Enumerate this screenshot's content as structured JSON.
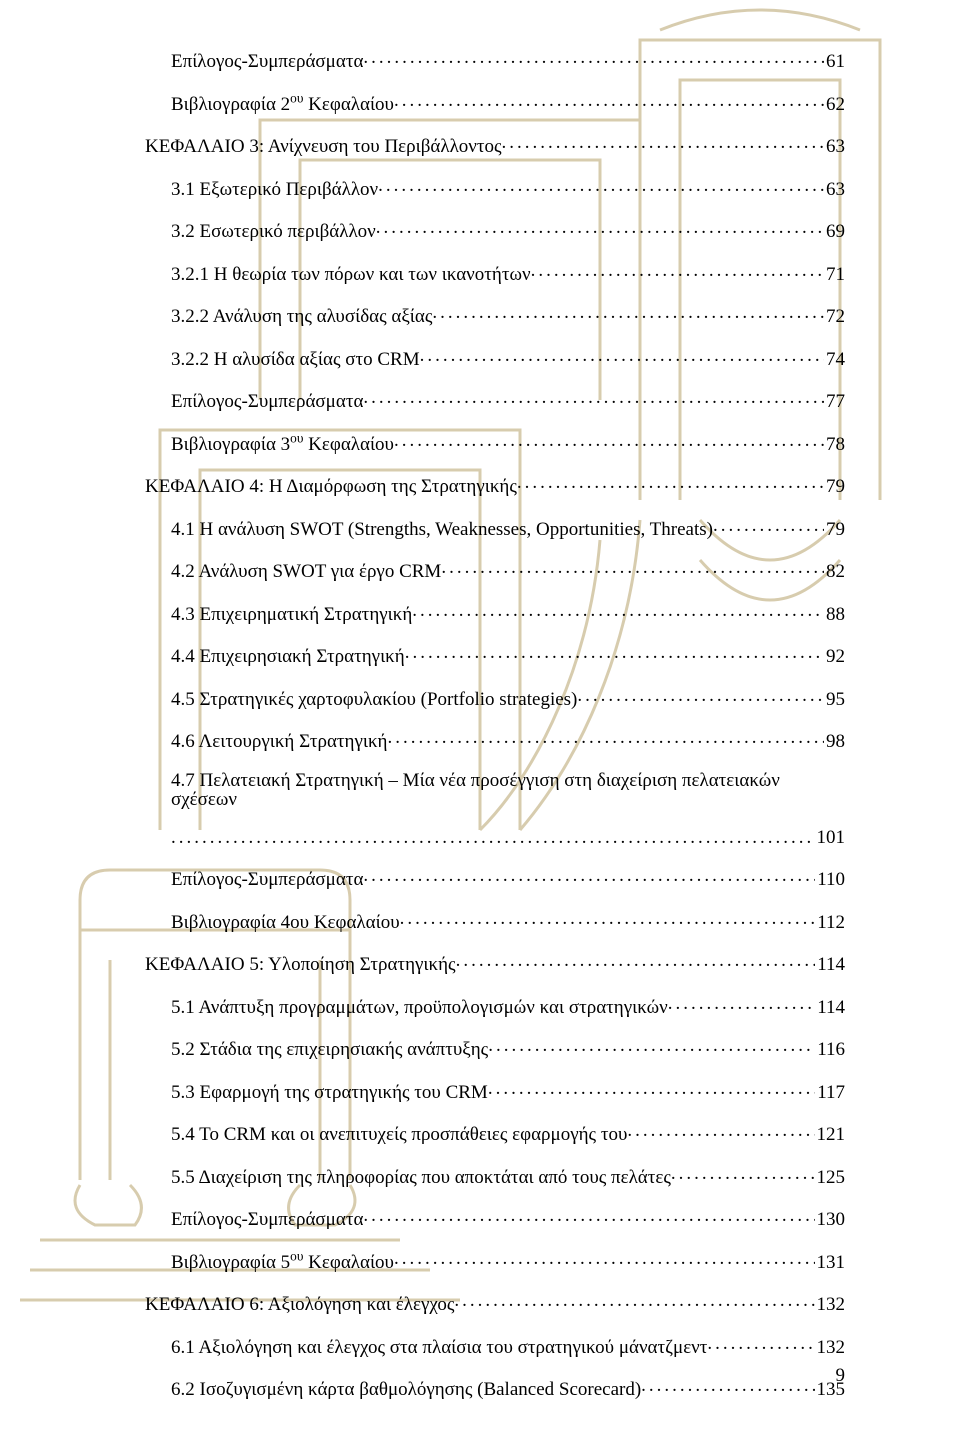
{
  "page_number": "9",
  "entries": [
    {
      "indent": "section",
      "text": "Επίλογος-Συμπεράσματα",
      "page": "61"
    },
    {
      "indent": "section",
      "html": "Βιβλιογραφία 2<sup>ου</sup> Κεφαλαίου",
      "page": "62"
    },
    {
      "indent": "chapter",
      "text": "ΚΕΦΑΛΑΙΟ 3: Ανίχνευση του Περιβάλλοντος",
      "page": "63"
    },
    {
      "indent": "section",
      "text": "3.1 Εξωτερικό Περιβάλλον",
      "page": "63"
    },
    {
      "indent": "section",
      "text": "3.2 Εσωτερικό περιβάλλον",
      "page": "69"
    },
    {
      "indent": "section",
      "text": "3.2.1 Η θεωρία των πόρων και των ικανοτήτων",
      "page": "71"
    },
    {
      "indent": "section",
      "text": "3.2.2 Ανάλυση της αλυσίδας αξίας",
      "page": "72"
    },
    {
      "indent": "section",
      "text": "3.2.2 Η αλυσίδα αξίας στο CRM",
      "page": "74"
    },
    {
      "indent": "section",
      "text": "Επίλογος-Συμπεράσματα",
      "page": "77"
    },
    {
      "indent": "section",
      "html": "Βιβλιογραφία 3<sup>ου</sup> Κεφαλαίου",
      "page": "78"
    },
    {
      "indent": "chapter",
      "text": "ΚΕΦΑΛΑΙΟ 4: Η Διαμόρφωση της Στρατηγικής",
      "page": "79"
    },
    {
      "indent": "section",
      "text": "4.1 Η ανάλυση SWOT (Strengths, Weaknesses, Opportunities, Threats)",
      "page": "79"
    },
    {
      "indent": "section",
      "text": "4.2 Ανάλυση SWOT για έργο CRM",
      "page": "82"
    },
    {
      "indent": "section",
      "text": "4.3 Επιχειρηματική Στρατηγική",
      "page": "88"
    },
    {
      "indent": "section",
      "text": "4.4 Επιχειρησιακή Στρατηγική",
      "page": "92"
    },
    {
      "indent": "section",
      "text": "4.5 Στρατηγικές χαρτοφυλακίου (Portfolio strategies)",
      "page": "95"
    },
    {
      "indent": "section",
      "text": "4.6 Λειτουργική Στρατηγική",
      "page": "98"
    },
    {
      "indent": "section",
      "multiline": true,
      "text_pre": "4.7 Πελατειακή Στρατηγική – Μία νέα προσέγγιση στη διαχείριση πελατειακών σχέσεων",
      "page": "101"
    },
    {
      "indent": "section",
      "text": "Επίλογος-Συμπεράσματα",
      "page": "110"
    },
    {
      "indent": "section",
      "text": "Βιβλιογραφία 4ου Κεφαλαίου",
      "page": "112"
    },
    {
      "indent": "chapter",
      "text": "ΚΕΦΑΛΑΙΟ 5: Υλοποίηση Στρατηγικής",
      "page": "114"
    },
    {
      "indent": "section",
      "text": "5.1 Ανάπτυξη προγραμμάτων, προϋπολογισμών και στρατηγικών",
      "page": "114"
    },
    {
      "indent": "section",
      "text": "5.2 Στάδια της επιχειρησιακής ανάπτυξης",
      "page": "116"
    },
    {
      "indent": "section",
      "text": "5.3 Εφαρμογή της στρατηγικής του CRM",
      "page": "117"
    },
    {
      "indent": "section",
      "text": "5.4 Το CRM και οι ανεπιτυχείς προσπάθειες εφαρμογής του",
      "page": "121"
    },
    {
      "indent": "section",
      "text": "5.5 Διαχείριση της πληροφορίας που αποκτάται από τους πελάτες",
      "page": "125"
    },
    {
      "indent": "section",
      "text": "Επίλογος-Συμπεράσματα",
      "page": "130"
    },
    {
      "indent": "section",
      "html": "Βιβλιογραφία 5<sup>ου</sup> Κεφαλαίου",
      "page": "131"
    },
    {
      "indent": "chapter",
      "text": "ΚΕΦΑΛΑΙΟ 6: Αξιολόγηση και έλεγχος",
      "page": "132"
    },
    {
      "indent": "section",
      "text": "6.1 Αξιολόγηση και έλεγχος στα πλαίσια του στρατηγικού μάνατζμεντ",
      "page": "132"
    },
    {
      "indent": "section",
      "text": "6.2 Ισοζυγισμένη κάρτα βαθμολόγησης (Balanced Scorecard)",
      "page": "135"
    }
  ],
  "watermark": {
    "stroke": "#b8a36c",
    "stroke_width": 3,
    "fill": "none",
    "opacity": 0.55
  }
}
